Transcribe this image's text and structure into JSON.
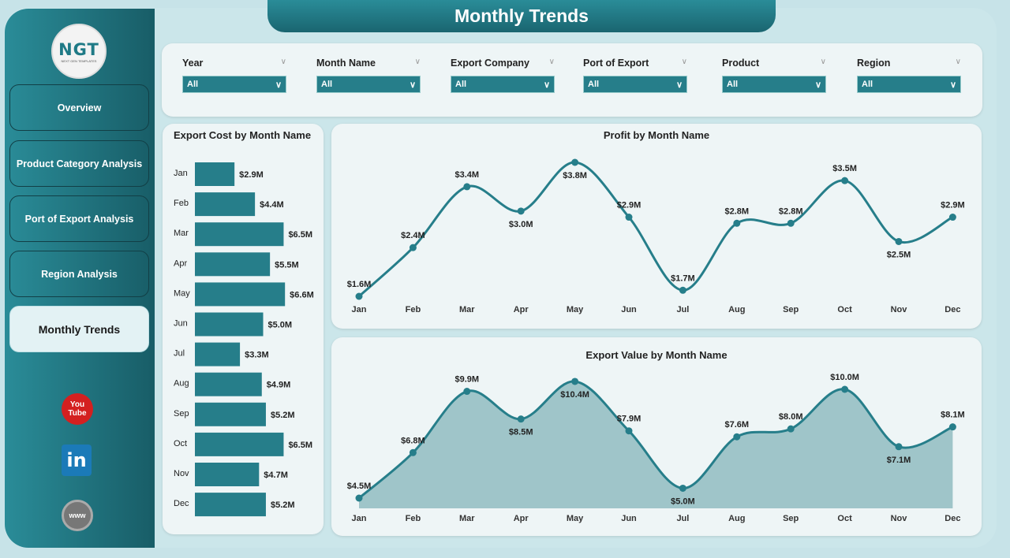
{
  "title": "Monthly Trends",
  "logo": {
    "text": "NGT",
    "tagline": "NEXT GEN TEMPLATES"
  },
  "sidebar": {
    "items": [
      {
        "label": "Overview"
      },
      {
        "label": "Product Category Analysis"
      },
      {
        "label": "Port of Export Analysis"
      },
      {
        "label": "Region Analysis"
      },
      {
        "label": "Monthly Trends",
        "active": true
      }
    ],
    "social": [
      {
        "icon": "youtube-icon",
        "label": "You Tube"
      },
      {
        "icon": "linkedin-icon",
        "label": "in"
      },
      {
        "icon": "globe-icon",
        "label": "www"
      }
    ]
  },
  "filters": [
    {
      "label": "Year",
      "value": "All"
    },
    {
      "label": "Month Name",
      "value": "All"
    },
    {
      "label": "Export Company",
      "value": "All"
    },
    {
      "label": "Port of Export",
      "value": "All"
    },
    {
      "label": "Product",
      "value": "All"
    },
    {
      "label": "Region",
      "value": "All"
    }
  ],
  "colors": {
    "accent": "#267e8a",
    "area": "#9fc5c9"
  },
  "chart_data": [
    {
      "type": "bar",
      "orientation": "horizontal",
      "title": "Export Cost by Month Name",
      "categories": [
        "Jan",
        "Feb",
        "Mar",
        "Apr",
        "May",
        "Jun",
        "Jul",
        "Aug",
        "Sep",
        "Oct",
        "Nov",
        "Dec"
      ],
      "values": [
        2.9,
        4.4,
        6.5,
        5.5,
        6.6,
        5.0,
        3.3,
        4.9,
        5.2,
        6.5,
        4.7,
        5.2
      ],
      "labels": [
        "$2.9M",
        "$4.4M",
        "$6.5M",
        "$5.5M",
        "$6.6M",
        "$5.0M",
        "$3.3M",
        "$4.9M",
        "$5.2M",
        "$6.5M",
        "$4.7M",
        "$5.2M"
      ],
      "unit": "$M"
    },
    {
      "type": "line",
      "title": "Profit by Month Name",
      "categories": [
        "Jan",
        "Feb",
        "Mar",
        "Apr",
        "May",
        "Jun",
        "Jul",
        "Aug",
        "Sep",
        "Oct",
        "Nov",
        "Dec"
      ],
      "values": [
        1.6,
        2.4,
        3.4,
        3.0,
        3.8,
        2.9,
        1.7,
        2.8,
        2.8,
        3.5,
        2.5,
        2.9
      ],
      "labels": [
        "$1.6M",
        "$2.4M",
        "$3.4M",
        "$3.0M",
        "$3.8M",
        "$2.9M",
        "$1.7M",
        "$2.8M",
        "$2.8M",
        "$3.5M",
        "$2.5M",
        "$2.9M"
      ],
      "unit": "$M"
    },
    {
      "type": "area",
      "title": "Export Value by Month Name",
      "categories": [
        "Jan",
        "Feb",
        "Mar",
        "Apr",
        "May",
        "Jun",
        "Jul",
        "Aug",
        "Sep",
        "Oct",
        "Nov",
        "Dec"
      ],
      "values": [
        4.5,
        6.8,
        9.9,
        8.5,
        10.4,
        7.9,
        5.0,
        7.6,
        8.0,
        10.0,
        7.1,
        8.1
      ],
      "labels": [
        "$4.5M",
        "$6.8M",
        "$9.9M",
        "$8.5M",
        "$10.4M",
        "$7.9M",
        "$5.0M",
        "$7.6M",
        "$8.0M",
        "$10.0M",
        "$7.1M",
        "$8.1M"
      ],
      "unit": "$M"
    }
  ]
}
